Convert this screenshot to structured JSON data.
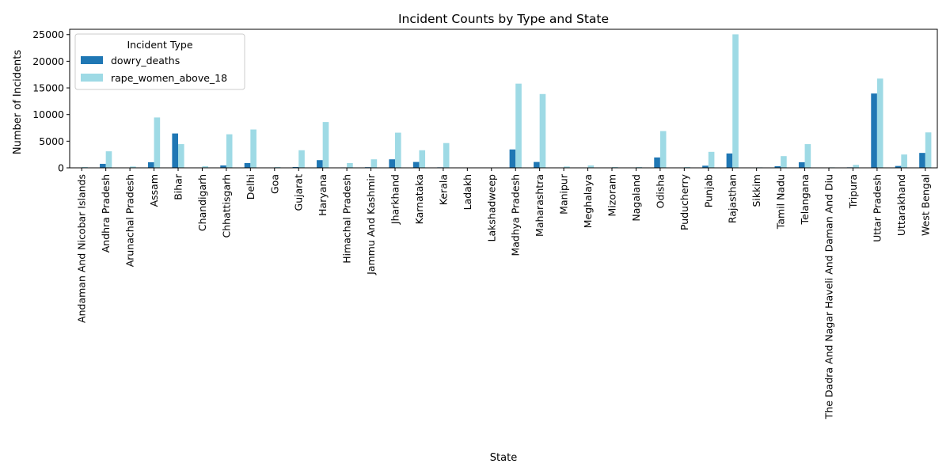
{
  "chart_data": {
    "type": "bar",
    "title": "Incident Counts by Type and State",
    "xlabel": "State",
    "ylabel": "Number of Incidents",
    "ylim": [
      0,
      26000
    ],
    "yticks": [
      "0",
      "5000",
      "10000",
      "15000",
      "20000",
      "25000"
    ],
    "grid": false,
    "legend": {
      "title": "Incident Type",
      "placement": "top-left"
    },
    "categories": [
      "Andaman And Nicobar Islands",
      "Andhra Pradesh",
      "Arunachal Pradesh",
      "Assam",
      "Bihar",
      "Chandigarh",
      "Chhattisgarh",
      "Delhi",
      "Goa",
      "Gujarat",
      "Haryana",
      "Himachal Pradesh",
      "Jammu And Kashmir",
      "Jharkhand",
      "Karnataka",
      "Kerala",
      "Ladakh",
      "Lakshadweep",
      "Madhya Pradesh",
      "Maharashtra",
      "Manipur",
      "Meghalaya",
      "Mizoram",
      "Nagaland",
      "Odisha",
      "Puducherry",
      "Punjab",
      "Rajasthan",
      "Sikkim",
      "Tamil Nadu",
      "Telangana",
      "The Dadra And Nagar Haveli And Daman And Diu",
      "Tripura",
      "Uttar Pradesh",
      "Uttarakhand",
      "West Bengal"
    ],
    "series": [
      {
        "name": "dowry_deaths",
        "color": "#1f77b4",
        "values": [
          5,
          750,
          5,
          1050,
          6450,
          20,
          450,
          900,
          5,
          150,
          1450,
          80,
          120,
          1600,
          1100,
          100,
          5,
          0,
          3450,
          1100,
          5,
          5,
          0,
          5,
          1950,
          5,
          400,
          2700,
          5,
          300,
          1050,
          10,
          100,
          13950,
          350,
          2800
        ]
      },
      {
        "name": "rape_women_above_18",
        "color": "#9edae5",
        "values": [
          150,
          3100,
          250,
          9450,
          4450,
          300,
          6300,
          7200,
          150,
          3300,
          8600,
          900,
          1600,
          6600,
          3300,
          4650,
          50,
          20,
          15800,
          13850,
          250,
          450,
          150,
          150,
          6900,
          150,
          3000,
          25050,
          100,
          2200,
          4450,
          100,
          550,
          16750,
          2500,
          6650
        ]
      }
    ]
  }
}
